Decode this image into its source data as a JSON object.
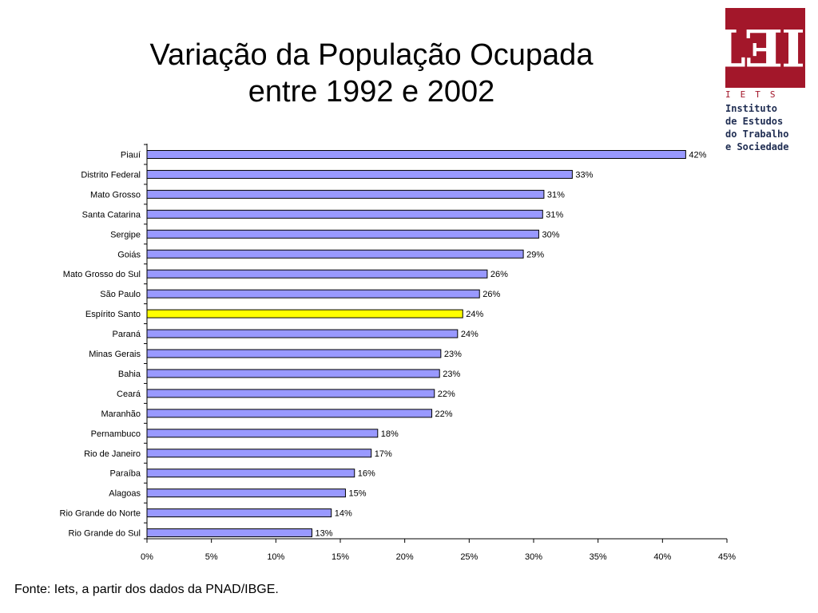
{
  "title": {
    "line1": "Variação da População Ocupada",
    "line2": "entre 1992 e 2002"
  },
  "logo": {
    "abbr": "IETS",
    "lines": [
      "Instituto",
      "de Estudos",
      "do Trabalho",
      "e Sociedade"
    ],
    "color": "#a3172a",
    "text_color": "#1f2d52"
  },
  "chart_data": {
    "type": "bar",
    "orientation": "horizontal",
    "categories": [
      "Piauí",
      "Distrito Federal",
      "Mato Grosso",
      "Santa Catarina",
      "Sergipe",
      "Goiás",
      "Mato Grosso do Sul",
      "São Paulo",
      "Espírito Santo",
      "Paraná",
      "Minas Gerais",
      "Bahia",
      "Ceará",
      "Maranhão",
      "Pernambuco",
      "Rio de Janeiro",
      "Paraíba",
      "Alagoas",
      "Rio Grande do Norte",
      "Rio Grande do Sul"
    ],
    "values": [
      41.8,
      33.0,
      30.8,
      30.7,
      30.4,
      29.2,
      26.4,
      25.8,
      24.5,
      24.1,
      22.8,
      22.7,
      22.3,
      22.1,
      17.9,
      17.4,
      16.1,
      15.4,
      14.3,
      12.8
    ],
    "value_labels": [
      "42%",
      "33%",
      "31%",
      "31%",
      "30%",
      "29%",
      "26%",
      "26%",
      "24%",
      "24%",
      "23%",
      "23%",
      "22%",
      "22%",
      "18%",
      "17%",
      "16%",
      "15%",
      "14%",
      "13%"
    ],
    "xlim": [
      0,
      45
    ],
    "xticks": [
      0,
      5,
      10,
      15,
      20,
      25,
      30,
      35,
      40,
      45
    ],
    "xtick_labels": [
      "0%",
      "5%",
      "10%",
      "15%",
      "20%",
      "25%",
      "30%",
      "35%",
      "40%",
      "45%"
    ],
    "highlight": "Espírito Santo",
    "bar_color": "#9999ff",
    "highlight_color": "#ffff00",
    "grid": false,
    "legend": "none"
  },
  "source": "Fonte: Iets, a partir dos dados da PNAD/IBGE."
}
